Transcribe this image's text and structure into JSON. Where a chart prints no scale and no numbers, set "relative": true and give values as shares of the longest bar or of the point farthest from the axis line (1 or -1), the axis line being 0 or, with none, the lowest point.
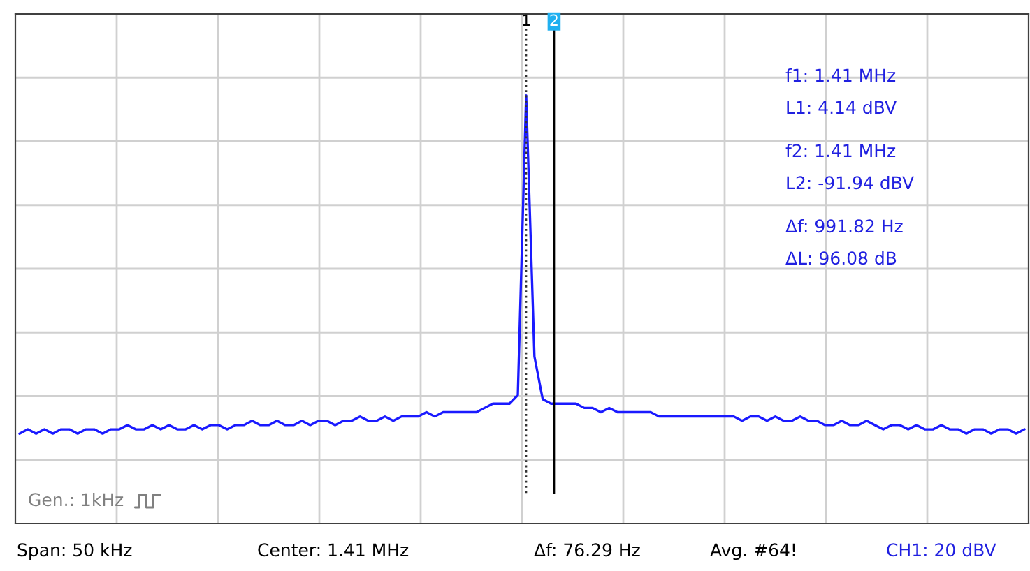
{
  "chart_data": {
    "type": "line",
    "relative": true,
    "grid": true,
    "marker": "none",
    "line_style": "solid",
    "categories": [
      null,
      null,
      null,
      null,
      null,
      null,
      null,
      null,
      null,
      null,
      null,
      null,
      null,
      null,
      null,
      null,
      null,
      null,
      null,
      null,
      null,
      null,
      null,
      null,
      null,
      null,
      null,
      null,
      null,
      null,
      null,
      null,
      null,
      null,
      null,
      null,
      null,
      null,
      null,
      null,
      null,
      null,
      null,
      null,
      null,
      null,
      null,
      null,
      null,
      null,
      null,
      null,
      null,
      null,
      null,
      null,
      null,
      null,
      null,
      null,
      null,
      null,
      null,
      null,
      null,
      null,
      null,
      null,
      null,
      null,
      null,
      null,
      null,
      null,
      null,
      null,
      null,
      null,
      null,
      null,
      null,
      null,
      null,
      null,
      null,
      null,
      null,
      null,
      null,
      null,
      null,
      null,
      null,
      null,
      null,
      null,
      null,
      null,
      null,
      null,
      null,
      null,
      null,
      null,
      null,
      null,
      null,
      null,
      null,
      null,
      null,
      null,
      null,
      null,
      null,
      null,
      null,
      null,
      null,
      null,
      null,
      null
    ],
    "series": [
      {
        "color": "#1a1aff",
        "values": [
          0.21,
          0.22,
          0.21,
          0.22,
          0.21,
          0.22,
          0.22,
          0.21,
          0.22,
          0.22,
          0.21,
          0.22,
          0.22,
          0.23,
          0.22,
          0.22,
          0.23,
          0.22,
          0.23,
          0.22,
          0.22,
          0.23,
          0.22,
          0.23,
          0.23,
          0.22,
          0.23,
          0.23,
          0.24,
          0.23,
          0.23,
          0.24,
          0.23,
          0.23,
          0.24,
          0.23,
          0.24,
          0.24,
          0.23,
          0.24,
          0.24,
          0.25,
          0.24,
          0.24,
          0.25,
          0.24,
          0.25,
          0.25,
          0.25,
          0.26,
          0.25,
          0.26,
          0.26,
          0.26,
          0.26,
          0.26,
          0.27,
          0.28,
          0.28,
          0.28,
          0.3,
          1.0,
          0.39,
          0.29,
          0.28,
          0.28,
          0.28,
          0.28,
          0.27,
          0.27,
          0.26,
          0.27,
          0.26,
          0.26,
          0.26,
          0.26,
          0.26,
          0.25,
          0.25,
          0.25,
          0.25,
          0.25,
          0.25,
          0.25,
          0.25,
          0.25,
          0.25,
          0.24,
          0.25,
          0.25,
          0.24,
          0.25,
          0.24,
          0.24,
          0.25,
          0.24,
          0.24,
          0.23,
          0.23,
          0.24,
          0.23,
          0.23,
          0.24,
          0.23,
          0.22,
          0.23,
          0.23,
          0.22,
          0.23,
          0.22,
          0.22,
          0.23,
          0.22,
          0.22,
          0.21,
          0.22,
          0.22,
          0.21,
          0.22,
          0.22,
          0.21,
          0.22
        ]
      }
    ],
    "annotations": [
      "1",
      "2",
      "f1: 1.41 MHz",
      "L1: 4.14 dBV",
      "f2: 1.41 MHz",
      "L2: -91.94 dBV",
      "Δf: 991.82 Hz",
      "ΔL: 96.08 dB",
      "Gen.: 1kHz",
      "Span: 50 kHz",
      "Center: 1.41 MHz",
      "Δf: 76.29 Hz",
      "Avg. #64!",
      "CH1: 20 dBV"
    ]
  }
}
